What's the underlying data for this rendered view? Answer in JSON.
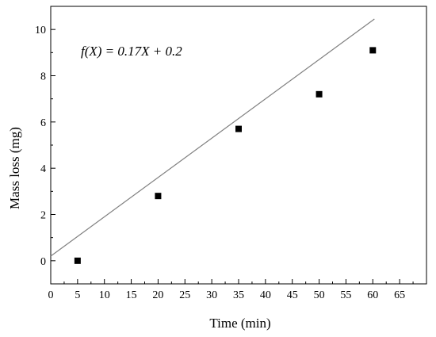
{
  "chart_data": {
    "type": "scatter",
    "xlabel": "Time (min)",
    "ylabel": "Mass loss (mg)",
    "xlim": [
      0,
      70
    ],
    "ylim": [
      -1,
      11
    ],
    "x_ticks": [
      0,
      5,
      10,
      15,
      20,
      25,
      30,
      35,
      40,
      45,
      50,
      55,
      60,
      65
    ],
    "y_ticks": [
      0,
      2,
      4,
      6,
      8,
      10
    ],
    "grid": false,
    "points": [
      {
        "x": 5,
        "y": 0.0
      },
      {
        "x": 20,
        "y": 2.8
      },
      {
        "x": 35,
        "y": 5.7
      },
      {
        "x": 50,
        "y": 7.2
      },
      {
        "x": 60,
        "y": 9.1
      }
    ],
    "fit_line": {
      "slope": 0.17,
      "intercept": 0.2
    },
    "annotation": "f(X) = 0.17X + 0.2",
    "colors": {
      "points": "#000000",
      "fit_line": "#808080",
      "axes": "#000000"
    }
  }
}
